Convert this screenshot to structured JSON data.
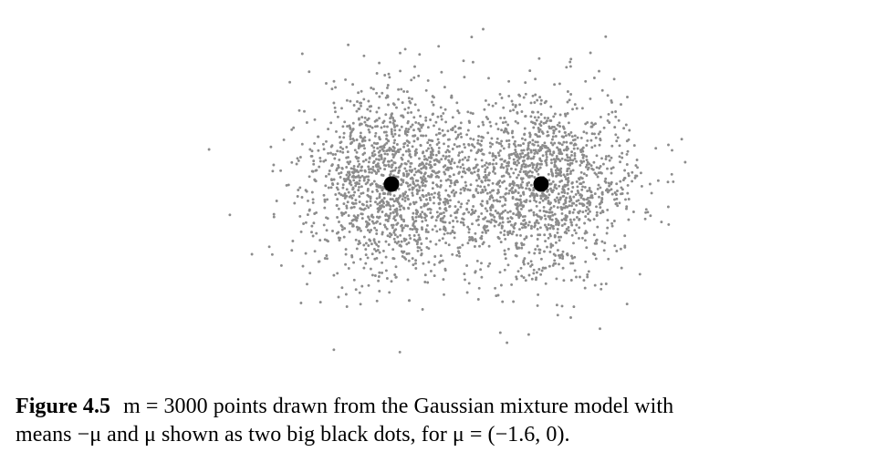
{
  "chart_data": {
    "type": "scatter",
    "title": "",
    "xlabel": "",
    "ylabel": "",
    "axes_visible": false,
    "grid": false,
    "legend": "none",
    "n_points": 3000,
    "point_color": "#8c8c8c",
    "mean_color": "#000000",
    "means": [
      {
        "x": -1.6,
        "y": 0
      },
      {
        "x": 1.6,
        "y": 0
      }
    ],
    "series": [
      {
        "values": "3000 points sampled from an equal-weight mixture of two unit-variance Gaussians centered at -mu and mu"
      }
    ],
    "xlim": [
      -5.5,
      5.5
    ],
    "ylim": [
      -3.8,
      3.8
    ]
  },
  "caption": {
    "label": "Figure 4.5",
    "line1": "m = 3000 points drawn from the Gaussian mixture model with",
    "line2": "means −μ and μ shown as two big black dots, for μ = (−1.6, 0)."
  }
}
